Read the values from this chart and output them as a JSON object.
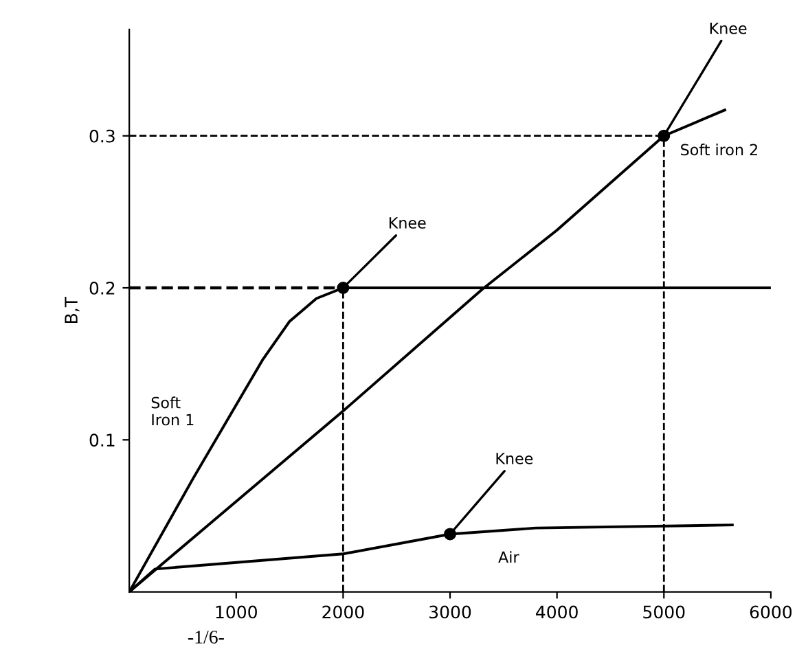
{
  "chart_data": {
    "type": "line",
    "ylabel": "B,T",
    "xlim": [
      0,
      6000
    ],
    "ylim": [
      0,
      0.37
    ],
    "xticks": [
      1000,
      2000,
      3000,
      4000,
      5000,
      6000
    ],
    "yticks": [
      0.1,
      0.2,
      0.3
    ],
    "grid": false,
    "marker": "none",
    "line_style": "solid",
    "series": [
      {
        "name": "Soft\nIron 1",
        "color": "#000000",
        "x": [
          0,
          600,
          1250,
          1500,
          1750,
          2000,
          6000
        ],
        "values": [
          0,
          0.075,
          0.153,
          0.178,
          0.193,
          0.2,
          0.2
        ]
      },
      {
        "name": "Soft iron 2",
        "color": "#000000",
        "x": [
          0,
          2000,
          3300,
          4000,
          5000,
          5570
        ],
        "values": [
          0,
          0.119,
          0.199,
          0.238,
          0.3,
          0.317
        ]
      },
      {
        "name": "Air",
        "color": "#000000",
        "x": [
          0,
          240,
          2000,
          3000,
          3800,
          5640
        ],
        "values": [
          0,
          0.015,
          0.025,
          0.038,
          0.042,
          0.044
        ]
      },
      {
        "type": "scatter",
        "marker": "circle",
        "color": "#000000",
        "x": [
          2000,
          3000,
          5000
        ],
        "values": [
          0.2,
          0.038,
          0.3
        ]
      }
    ],
    "ref_lines": [
      {
        "axis": "x",
        "value": 2000,
        "line_style": "dashed",
        "color": "#000000"
      },
      {
        "axis": "x",
        "value": 5000,
        "line_style": "dashed",
        "color": "#000000"
      },
      {
        "axis": "y",
        "value": 0.2,
        "line_style": "dashed",
        "color": "#000000"
      },
      {
        "axis": "y",
        "value": 0.3,
        "line_style": "dashed",
        "color": "#000000"
      }
    ],
    "annotations": [
      {
        "text": "Knee",
        "x": 2000,
        "y": 0.2
      },
      {
        "text": "Knee",
        "x": 3000,
        "y": 0.038
      },
      {
        "text": "Knee",
        "x": 5000,
        "y": 0.3
      },
      "-1/6-"
    ]
  }
}
